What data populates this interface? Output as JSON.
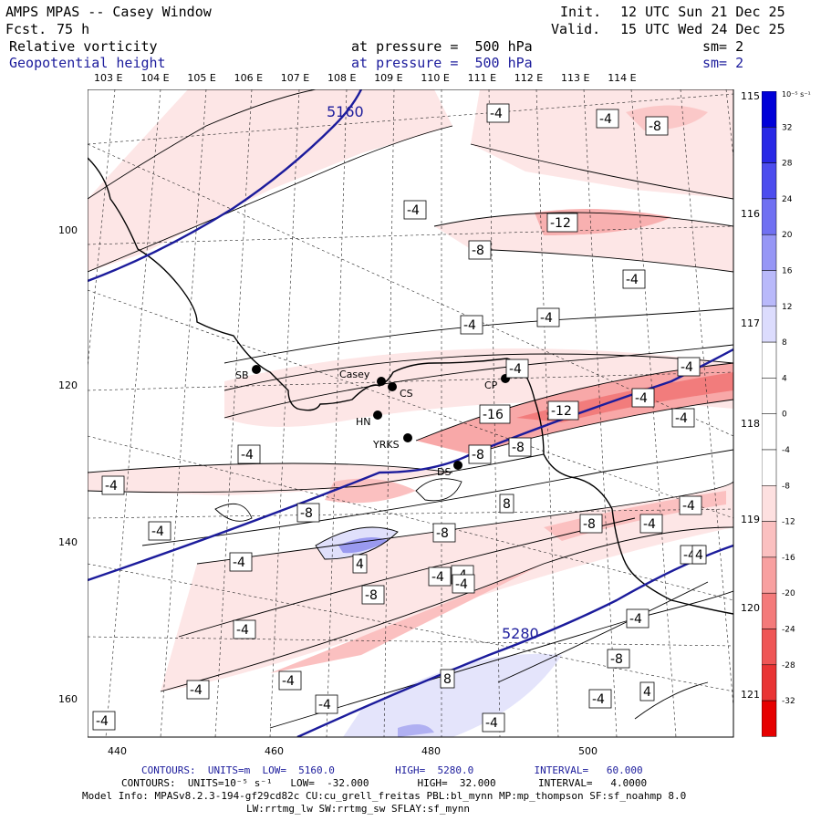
{
  "header": {
    "title": "AMPS MPAS -- Casey Window",
    "forecast_label": "Fcst.",
    "forecast_value": "75 h",
    "init_label": "Init.",
    "init_value": "12 UTC Sun 21 Dec 25",
    "valid_label": "Valid.",
    "valid_value": "15 UTC Wed 24 Dec 25",
    "field1_name": "Relative vorticity",
    "field1_pressure": "at pressure =  500 hPa",
    "field1_smooth": "sm= 2",
    "field2_name": "Geopotential height",
    "field2_pressure": "at pressure =  500 hPa",
    "field2_smooth": "sm= 2"
  },
  "colors": {
    "height_contour": "#1c1c9c",
    "neg_fill": "#e33a3a",
    "pos_fill": "#2a2ad8",
    "coast": "#000000"
  },
  "top_lon_labels": [
    "103 E",
    "104 E",
    "105 E",
    "106 E",
    "107 E",
    "108 E",
    "109 E",
    "110 E",
    "111 E",
    "112 E",
    "113 E",
    "114 E"
  ],
  "right_lon_labels": [
    "115 E",
    "116 E",
    "117 E",
    "118 E",
    "119 E",
    "120 E",
    "121 E"
  ],
  "x_ticks": [
    "440",
    "460",
    "480",
    "500"
  ],
  "y_ticks": [
    "100",
    "120",
    "140",
    "160"
  ],
  "colorbar": {
    "unit": "10⁻⁵ s⁻¹",
    "labels": [
      "32",
      "28",
      "24",
      "20",
      "16",
      "12",
      "8",
      "4",
      "0",
      "-4",
      "-8",
      "-12",
      "-16",
      "-20",
      "-24",
      "-28",
      "-32"
    ],
    "levels": [
      36,
      32,
      28,
      24,
      20,
      16,
      12,
      8,
      4,
      0,
      -4,
      -8,
      -12,
      -16,
      -20,
      -24,
      -28,
      -32,
      -36
    ],
    "colors": [
      "#0000d8",
      "#2828e6",
      "#4c4cee",
      "#7070f2",
      "#9696f6",
      "#b9b9fa",
      "#dcdcfd",
      "#ffffff",
      "#ffffff",
      "#ffffff",
      "#ffffff",
      "#fde0e0",
      "#fbc0c0",
      "#f8a0a0",
      "#f47a7a",
      "#ef5656",
      "#e93434",
      "#e60000"
    ]
  },
  "stations": [
    {
      "name": "SB"
    },
    {
      "name": "Casey"
    },
    {
      "name": "CS"
    },
    {
      "name": "HN"
    },
    {
      "name": "YRKS"
    },
    {
      "name": "DS"
    },
    {
      "name": "CP"
    }
  ],
  "height_contour_labels": [
    "5160",
    "5280"
  ],
  "vorticity_labels": [
    "-4",
    "-4",
    "-8",
    "-4",
    "-4",
    "-12",
    "-8",
    "-4",
    "-4",
    "-4",
    "-4",
    "-4",
    "-16",
    "-4",
    "-8",
    "-12",
    "-4",
    "-8",
    "-4",
    "-8",
    "8",
    "-4",
    "-8",
    "-4",
    "-4",
    "-8",
    "-4",
    "4",
    "-4",
    "-4",
    "-4",
    "-8",
    "-4",
    "-4",
    "4",
    "-4",
    "-8",
    "-4",
    "-4",
    "-4",
    "8",
    "-4",
    "-4",
    "-4",
    "4"
  ],
  "footer": {
    "contours1": "CONTOURS:  UNITS=m  LOW=  5160.0          HIGH=  5280.0          INTERVAL=   60.000",
    "contours2": "CONTOURS:  UNITS=10⁻⁵ s⁻¹   LOW=  -32.000        HIGH=  32.000       INTERVAL=   4.0000",
    "model_info": "Model Info: MPASv8.2.3-194-gf29cd82c CU:cu_grell_freitas PBL:bl_mynn MP:mp_thompson SF:sf_noahmp 8.0",
    "model_info2": "LW:rrtmg_lw SW:rrtmg_sw SFLAY:sf_mynn"
  }
}
